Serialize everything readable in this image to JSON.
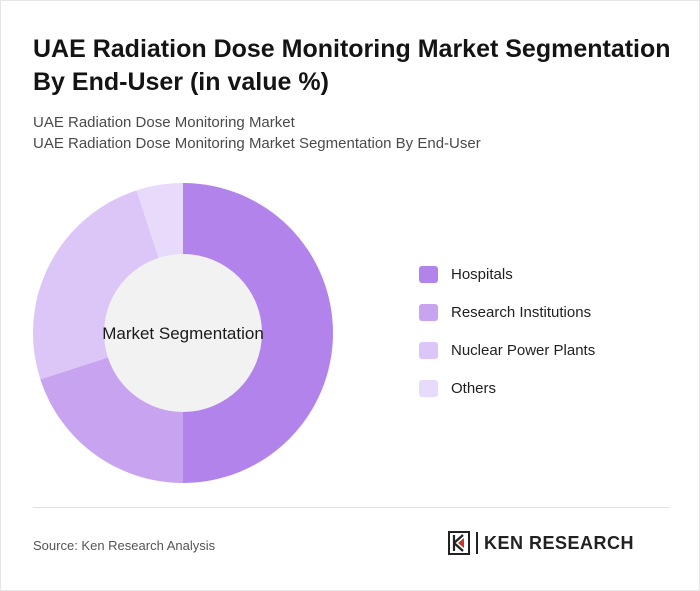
{
  "header": {
    "title": "UAE Radiation Dose Monitoring Market Segmentation By End-User (in value %)",
    "subtitle_1": "UAE Radiation Dose Monitoring Market",
    "subtitle_2": "UAE Radiation Dose Monitoring Market Segmentation By End-User"
  },
  "chart_data": {
    "type": "pie",
    "donut": true,
    "center_label": "Market Segmentation",
    "categories": [
      "Hospitals",
      "Research Institutions",
      "Nuclear Power Plants",
      "Others"
    ],
    "values": [
      50,
      20,
      25,
      5
    ],
    "colors": [
      "#b383ec",
      "#c7a3f0",
      "#dcc6f7",
      "#e8dafa"
    ],
    "legend_position": "right"
  },
  "footer": {
    "source": "Source: Ken Research Analysis",
    "logo_text": "KEN RESEARCH"
  }
}
